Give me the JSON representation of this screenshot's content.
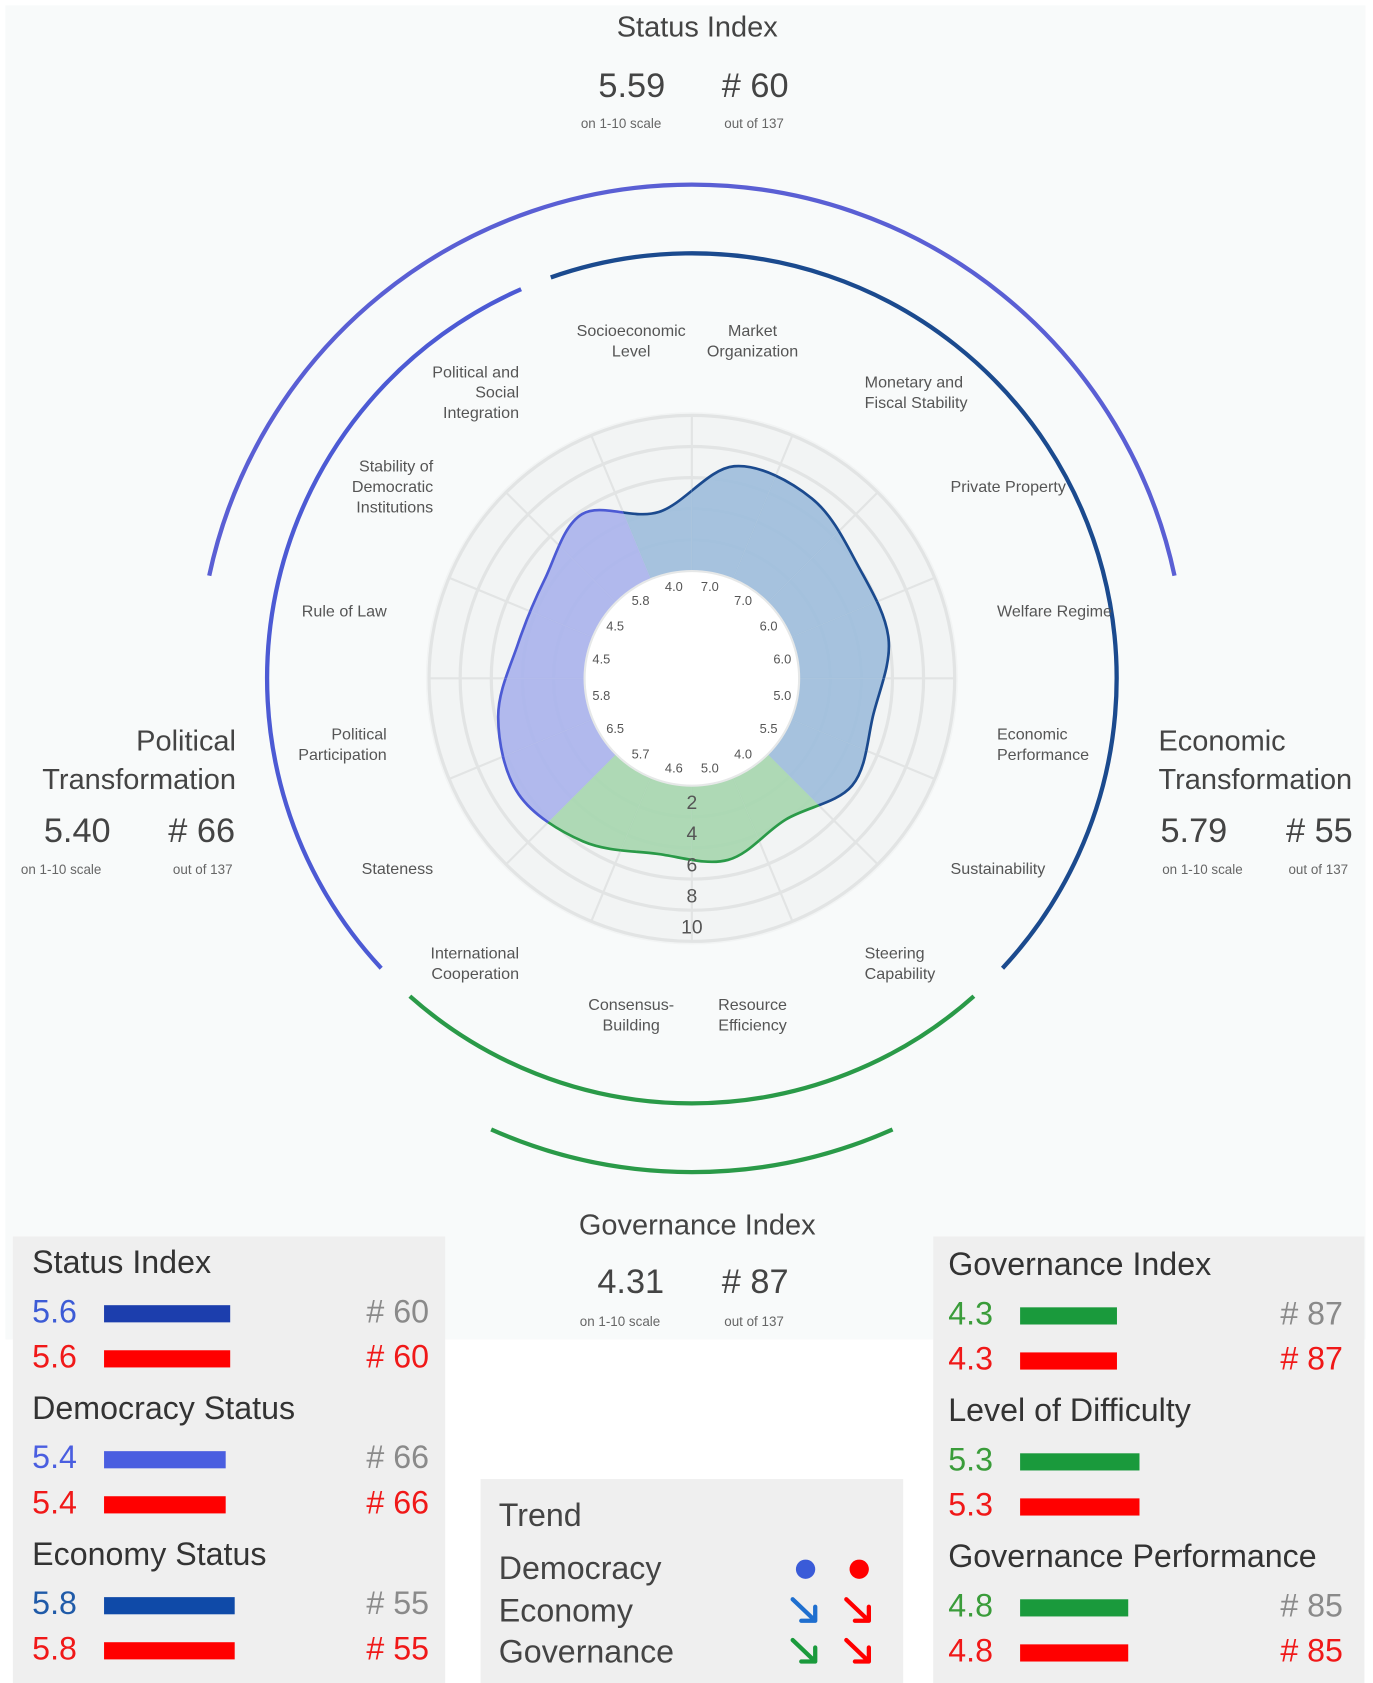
{
  "status_index": {
    "title": "Status Index",
    "score": "5.59",
    "score_note": "on 1-10 scale",
    "rank": "# 60",
    "rank_note": "out of 137"
  },
  "political_transformation": {
    "title": "Political Transformation",
    "score": "5.40",
    "score_note": "on 1-10 scale",
    "rank": "# 66",
    "rank_note": "out of 137"
  },
  "economic_transformation": {
    "title": "Economic Transformation",
    "score": "5.79",
    "score_note": "on 1-10 scale",
    "rank": "# 55",
    "rank_note": "out of 137"
  },
  "governance_index": {
    "title": "Governance Index",
    "score": "4.31",
    "score_note": "on 1-10 scale",
    "rank": "# 87",
    "rank_note": "out of 137"
  },
  "chart_data": {
    "type": "radar",
    "categories": [
      "Socioeconomic Level",
      "Market Organization",
      "Monetary and Fiscal Stability",
      "Private Property",
      "Welfare Regime",
      "Economic Performance",
      "Sustainability",
      "Steering Capability",
      "Resource Efficiency",
      "Consensus-Building",
      "International Cooperation",
      "Stateness",
      "Political Participation",
      "Rule of Law",
      "Stability of Democratic Institutions",
      "Political and Social Integration"
    ],
    "values": [
      4.0,
      7.0,
      7.0,
      6.0,
      6.0,
      5.0,
      5.5,
      4.0,
      5.0,
      4.6,
      5.7,
      6.5,
      5.8,
      4.5,
      4.5,
      5.8
    ],
    "value_labels": [
      "4.0",
      "7.0",
      "7.0",
      "6.0",
      "6.0",
      "5.0",
      "5.5",
      "4.0",
      "5.0",
      "4.6",
      "5.7",
      "6.5",
      "5.8",
      "4.5",
      "4.5",
      "5.8"
    ],
    "colors": [
      "#9dbcdb",
      "#9dbcdb",
      "#9dbcdb",
      "#9dbcdb",
      "#9dbcdb",
      "#9dbcdb",
      "#9dbcdb",
      "#a6d6ae",
      "#a6d6ae",
      "#a6d6ae",
      "#a6d6ae",
      "#aab3ec",
      "#aab3ec",
      "#aab3ec",
      "#aab3ec",
      "#aab3ec"
    ],
    "line_colors": [
      "#1b4a8e",
      "#1b4a8e",
      "#1b4a8e",
      "#1b4a8e",
      "#1b4a8e",
      "#1b4a8e",
      "#1b4a8e",
      "#2a9a48",
      "#2a9a48",
      "#2a9a48",
      "#2a9a48",
      "#4c5ad4",
      "#4c5ad4",
      "#4c5ad4",
      "#4c5ad4",
      "#4c5ad4"
    ],
    "rlim": [
      0,
      10
    ],
    "rticks": [
      2,
      4,
      6,
      8,
      10
    ]
  },
  "panels": [
    {
      "sections": [
        {
          "title": "Status Index",
          "rows": [
            {
              "value": 5.6,
              "rank": "# 60",
              "color": "#3c5bd6",
              "bar_color": "#1c3ead",
              "rank_color": "#8a8a8a"
            },
            {
              "value": 5.6,
              "rank": "# 60",
              "color": "#f01818",
              "bar_color": "#ff0000",
              "rank_color": "#f01818"
            }
          ]
        },
        {
          "title": "Democracy Status",
          "rows": [
            {
              "value": 5.4,
              "rank": "# 66",
              "color": "#4a5ee0",
              "bar_color": "#4a5ee0",
              "rank_color": "#8a8a8a"
            },
            {
              "value": 5.4,
              "rank": "# 66",
              "color": "#f01818",
              "bar_color": "#ff0000",
              "rank_color": "#f01818"
            }
          ]
        },
        {
          "title": "Economy Status",
          "rows": [
            {
              "value": 5.8,
              "rank": "# 55",
              "color": "#1f5aa8",
              "bar_color": "#0f4aa8",
              "rank_color": "#8a8a8a"
            },
            {
              "value": 5.8,
              "rank": "# 55",
              "color": "#f01818",
              "bar_color": "#ff0000",
              "rank_color": "#f01818"
            }
          ]
        }
      ]
    },
    {
      "sections": [
        {
          "title": "Governance Index",
          "rows": [
            {
              "value": 4.3,
              "rank": "# 87",
              "color": "#3a9c3a",
              "bar_color": "#1a9a3c",
              "rank_color": "#8a8a8a"
            },
            {
              "value": 4.3,
              "rank": "# 87",
              "color": "#f01818",
              "bar_color": "#ff0000",
              "rank_color": "#f01818"
            }
          ]
        },
        {
          "title": "Level of Difficulty",
          "rows": [
            {
              "value": 5.3,
              "color": "#3a9c3a",
              "bar_color": "#1a9a3c"
            },
            {
              "value": 5.3,
              "color": "#f01818",
              "bar_color": "#ff0000"
            }
          ]
        },
        {
          "title": "Governance Performance",
          "rows": [
            {
              "value": 4.8,
              "rank": "# 85",
              "color": "#3a9c3a",
              "bar_color": "#1a9a3c",
              "rank_color": "#8a8a8a"
            },
            {
              "value": 4.8,
              "rank": "# 85",
              "color": "#f01818",
              "bar_color": "#ff0000",
              "rank_color": "#f01818"
            }
          ]
        }
      ]
    }
  ],
  "trend": {
    "title": "Trend",
    "rows": [
      "Democracy",
      "Economy",
      "Governance"
    ]
  }
}
